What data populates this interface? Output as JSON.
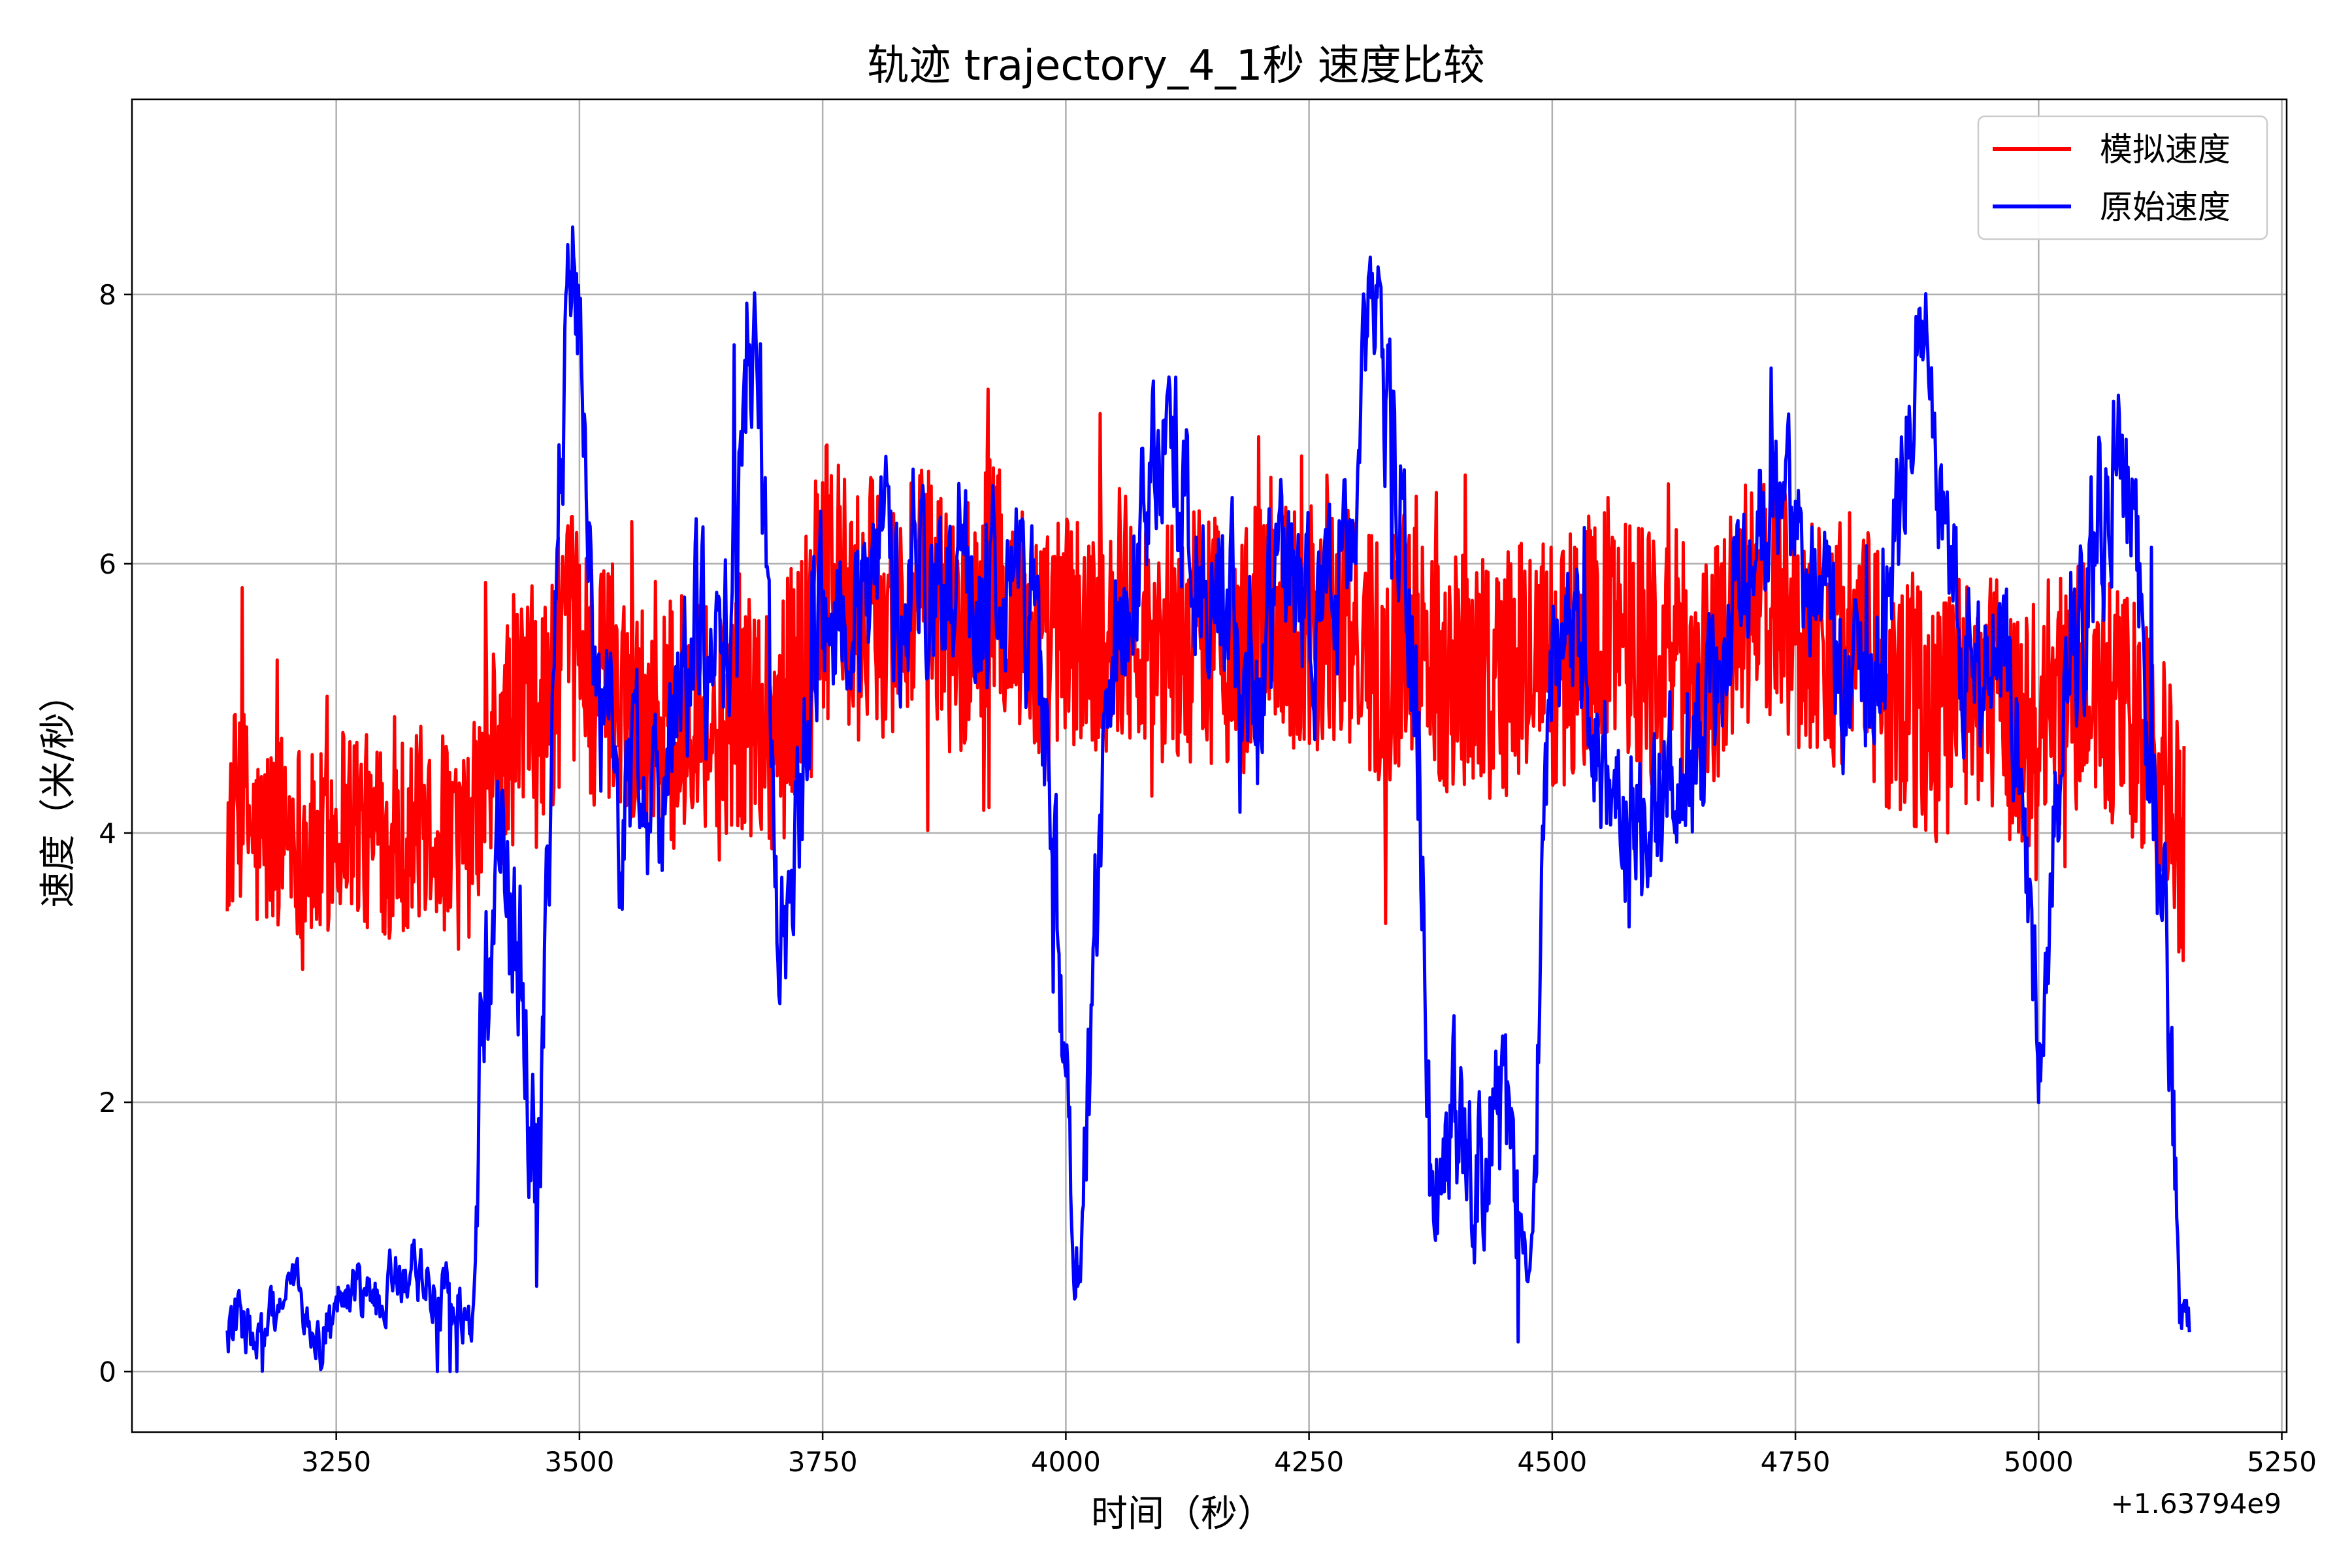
{
  "chart_data": {
    "type": "line",
    "title": "轨迹 trajectory_4_1秒 速度比较",
    "xlabel": "时间（秒）",
    "ylabel": "速度（米/秒）",
    "x_offset_label": "+1.63794e9",
    "xlim": [
      3040,
      5255
    ],
    "ylim": [
      -0.45,
      9.45
    ],
    "x_ticks": [
      3250,
      3500,
      3750,
      4000,
      4250,
      4500,
      4750,
      5000,
      5250
    ],
    "y_ticks": [
      0,
      2,
      4,
      6,
      8
    ],
    "grid": true,
    "legend_position": "top-right",
    "series": [
      {
        "name": "模拟速度",
        "color": "#ff0000",
        "x": [
          3138,
          3150,
          3170,
          3200,
          3230,
          3260,
          3290,
          3320,
          3350,
          3380,
          3400,
          3420,
          3440,
          3460,
          3480,
          3500,
          3520,
          3540,
          3560,
          3580,
          3600,
          3620,
          3640,
          3660,
          3680,
          3700,
          3720,
          3740,
          3760,
          3780,
          3800,
          3830,
          3860,
          3890,
          3920,
          3950,
          3980,
          4000,
          4030,
          4060,
          4090,
          4120,
          4150,
          4180,
          4210,
          4240,
          4270,
          4300,
          4330,
          4360,
          4390,
          4420,
          4450,
          4480,
          4510,
          4540,
          4570,
          4600,
          4630,
          4660,
          4690,
          4720,
          4750,
          4780,
          4810,
          4840,
          4870,
          4900,
          4930,
          4960,
          4990,
          5020,
          5050,
          5080,
          5110,
          5130,
          5150
        ],
        "y": [
          4.0,
          4.3,
          3.9,
          4.1,
          3.8,
          4.2,
          3.9,
          4.0,
          4.1,
          3.8,
          4.3,
          4.6,
          5.0,
          4.8,
          5.3,
          5.5,
          5.0,
          5.2,
          4.8,
          5.0,
          4.7,
          5.2,
          4.6,
          5.0,
          4.9,
          4.8,
          5.1,
          5.6,
          6.1,
          5.5,
          5.7,
          5.6,
          5.8,
          5.4,
          5.9,
          5.6,
          5.3,
          5.5,
          5.4,
          5.7,
          5.5,
          5.4,
          5.6,
          5.3,
          5.7,
          5.5,
          5.6,
          5.4,
          5.3,
          5.6,
          5.2,
          5.3,
          5.1,
          5.4,
          5.2,
          5.5,
          5.6,
          5.4,
          5.3,
          5.2,
          5.6,
          5.8,
          5.6,
          5.4,
          5.5,
          5.1,
          5.0,
          4.8,
          5.2,
          4.9,
          4.8,
          5.0,
          5.1,
          4.9,
          4.7,
          4.3,
          3.9
        ]
      },
      {
        "name": "原始速度",
        "color": "#0000ff",
        "x": [
          3138,
          3150,
          3170,
          3190,
          3210,
          3230,
          3250,
          3270,
          3290,
          3310,
          3330,
          3350,
          3370,
          3390,
          3400,
          3410,
          3420,
          3430,
          3440,
          3450,
          3460,
          3470,
          3480,
          3490,
          3500,
          3510,
          3520,
          3530,
          3540,
          3560,
          3580,
          3600,
          3620,
          3640,
          3660,
          3670,
          3680,
          3690,
          3700,
          3710,
          3730,
          3750,
          3770,
          3790,
          3810,
          3830,
          3850,
          3870,
          3890,
          3910,
          3930,
          3950,
          3970,
          3980,
          3990,
          4000,
          4005,
          4010,
          4015,
          4020,
          4030,
          4040,
          4060,
          4080,
          4100,
          4120,
          4140,
          4160,
          4180,
          4200,
          4220,
          4240,
          4260,
          4280,
          4300,
          4310,
          4320,
          4330,
          4340,
          4350,
          4360,
          4370,
          4375,
          4380,
          4400,
          4420,
          4440,
          4460,
          4470,
          4480,
          4490,
          4500,
          4520,
          4540,
          4560,
          4580,
          4600,
          4620,
          4640,
          4660,
          4680,
          4700,
          4720,
          4740,
          4760,
          4780,
          4800,
          4820,
          4840,
          4860,
          4870,
          4880,
          4890,
          4900,
          4920,
          4940,
          4960,
          4980,
          4990,
          5000,
          5010,
          5020,
          5040,
          5060,
          5080,
          5100,
          5110,
          5120,
          5130,
          5140,
          5145,
          5150,
          5155
        ],
        "y": [
          0.3,
          0.4,
          0.2,
          0.5,
          0.6,
          0.2,
          0.4,
          0.6,
          0.5,
          0.7,
          0.8,
          0.6,
          0.5,
          0.3,
          2.5,
          3.5,
          4.0,
          3.2,
          3.0,
          2.0,
          1.5,
          4.0,
          6.5,
          8.2,
          8.0,
          6.0,
          5.0,
          4.8,
          4.0,
          4.5,
          4.2,
          5.0,
          5.5,
          5.0,
          6.0,
          7.2,
          7.6,
          6.5,
          4.0,
          3.0,
          4.5,
          5.5,
          5.8,
          5.5,
          6.0,
          5.8,
          6.2,
          5.6,
          6.0,
          5.5,
          6.2,
          5.8,
          5.5,
          4.5,
          3.5,
          2.5,
          1.0,
          0.4,
          0.6,
          1.5,
          3.0,
          4.5,
          5.5,
          6.5,
          7.0,
          6.5,
          6.0,
          5.8,
          5.5,
          5.2,
          5.8,
          6.0,
          5.5,
          5.8,
          6.5,
          7.5,
          7.8,
          7.2,
          6.8,
          6.0,
          5.0,
          3.0,
          1.2,
          1.5,
          1.8,
          1.6,
          2.0,
          1.4,
          1.0,
          0.8,
          3.5,
          5.0,
          5.5,
          4.8,
          4.5,
          4.2,
          3.8,
          4.2,
          4.5,
          4.8,
          5.5,
          5.8,
          6.5,
          6.2,
          5.8,
          5.5,
          5.0,
          4.8,
          5.5,
          6.5,
          7.5,
          8.0,
          7.2,
          6.5,
          5.5,
          5.0,
          5.5,
          4.5,
          3.5,
          2.8,
          3.5,
          4.5,
          5.5,
          6.2,
          6.8,
          6.0,
          5.0,
          4.2,
          3.5,
          1.5,
          0.3,
          0.5,
          0.4
        ]
      }
    ]
  }
}
